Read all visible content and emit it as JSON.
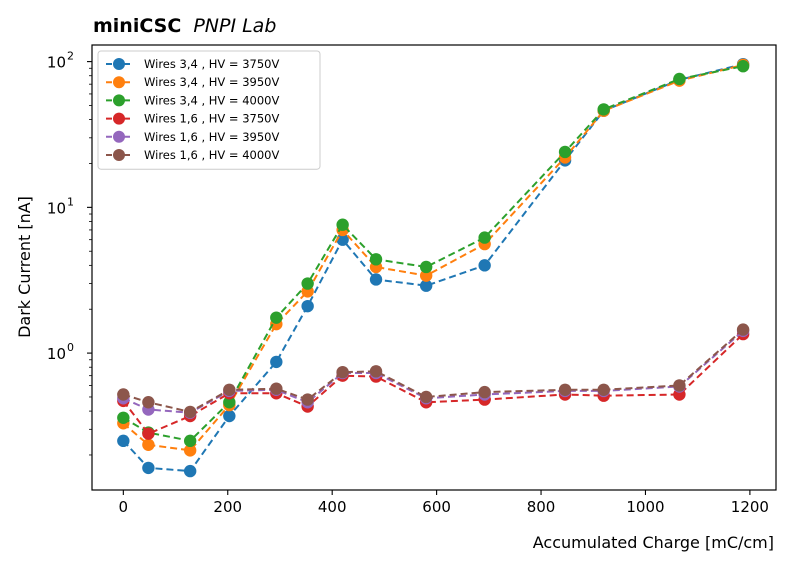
{
  "chart_data": {
    "type": "line",
    "title_bold": "miniCSC",
    "title_italic": "PNPI Lab",
    "xlabel": "Accumulated Charge [mC/cm]",
    "ylabel": "Dark Current [nA]",
    "xlim": [
      -60,
      1250
    ],
    "ylim": [
      0.115,
      130
    ],
    "yscale": "log",
    "x_ticks": [
      0,
      200,
      400,
      600,
      800,
      1000,
      1200
    ],
    "y_ticks": [
      {
        "value": 1,
        "base": "10",
        "exp": "0"
      },
      {
        "value": 10,
        "base": "10",
        "exp": "1"
      },
      {
        "value": 100,
        "base": "10",
        "exp": "2"
      }
    ],
    "grid": false,
    "legend_position": "top-left",
    "series": [
      {
        "name": "Wires 3,4 , HV = 3750V",
        "color": "#1f77b4",
        "x": [
          0,
          48,
          128,
          203,
          293,
          353,
          420,
          484,
          580,
          692,
          846,
          920,
          1065,
          1187
        ],
        "y": [
          0.25,
          0.163,
          0.155,
          0.37,
          0.87,
          2.1,
          6.0,
          3.2,
          2.9,
          4.0,
          21,
          46,
          75,
          96
        ]
      },
      {
        "name": "Wires 3,4 , HV = 3950V",
        "color": "#ff7f0e",
        "x": [
          0,
          48,
          128,
          203,
          293,
          353,
          420,
          484,
          580,
          692,
          846,
          920,
          1065,
          1187
        ],
        "y": [
          0.33,
          0.235,
          0.215,
          0.44,
          1.58,
          2.65,
          7.0,
          3.9,
          3.4,
          5.6,
          22,
          46,
          74,
          95
        ]
      },
      {
        "name": "Wires 3,4 , HV = 4000V",
        "color": "#2ca02c",
        "x": [
          0,
          48,
          128,
          203,
          293,
          353,
          420,
          484,
          580,
          692,
          846,
          920,
          1065,
          1187
        ],
        "y": [
          0.36,
          0.285,
          0.25,
          0.46,
          1.75,
          3.0,
          7.6,
          4.4,
          3.9,
          6.2,
          24,
          47,
          76,
          93
        ]
      },
      {
        "name": "Wires 1,6 , HV = 3750V",
        "color": "#d62728",
        "x": [
          0,
          48,
          128,
          203,
          293,
          353,
          420,
          484,
          580,
          692,
          846,
          920,
          1065,
          1187
        ],
        "y": [
          0.47,
          0.28,
          0.37,
          0.53,
          0.53,
          0.43,
          0.7,
          0.69,
          0.46,
          0.48,
          0.52,
          0.51,
          0.52,
          1.35
        ]
      },
      {
        "name": "Wires 1,6 , HV = 3950V",
        "color": "#9467bd",
        "x": [
          0,
          48,
          128,
          203,
          293,
          353,
          420,
          484,
          580,
          692,
          846,
          920,
          1065,
          1187
        ],
        "y": [
          0.49,
          0.41,
          0.39,
          0.55,
          0.56,
          0.46,
          0.73,
          0.73,
          0.49,
          0.52,
          0.55,
          0.55,
          0.59,
          1.42
        ]
      },
      {
        "name": "Wires 1,6 , HV = 4000V",
        "color": "#8c564b",
        "x": [
          0,
          48,
          128,
          203,
          293,
          353,
          420,
          484,
          580,
          692,
          846,
          920,
          1065,
          1187
        ],
        "y": [
          0.52,
          0.46,
          0.395,
          0.56,
          0.57,
          0.48,
          0.74,
          0.75,
          0.5,
          0.54,
          0.56,
          0.56,
          0.6,
          1.45
        ]
      }
    ]
  }
}
